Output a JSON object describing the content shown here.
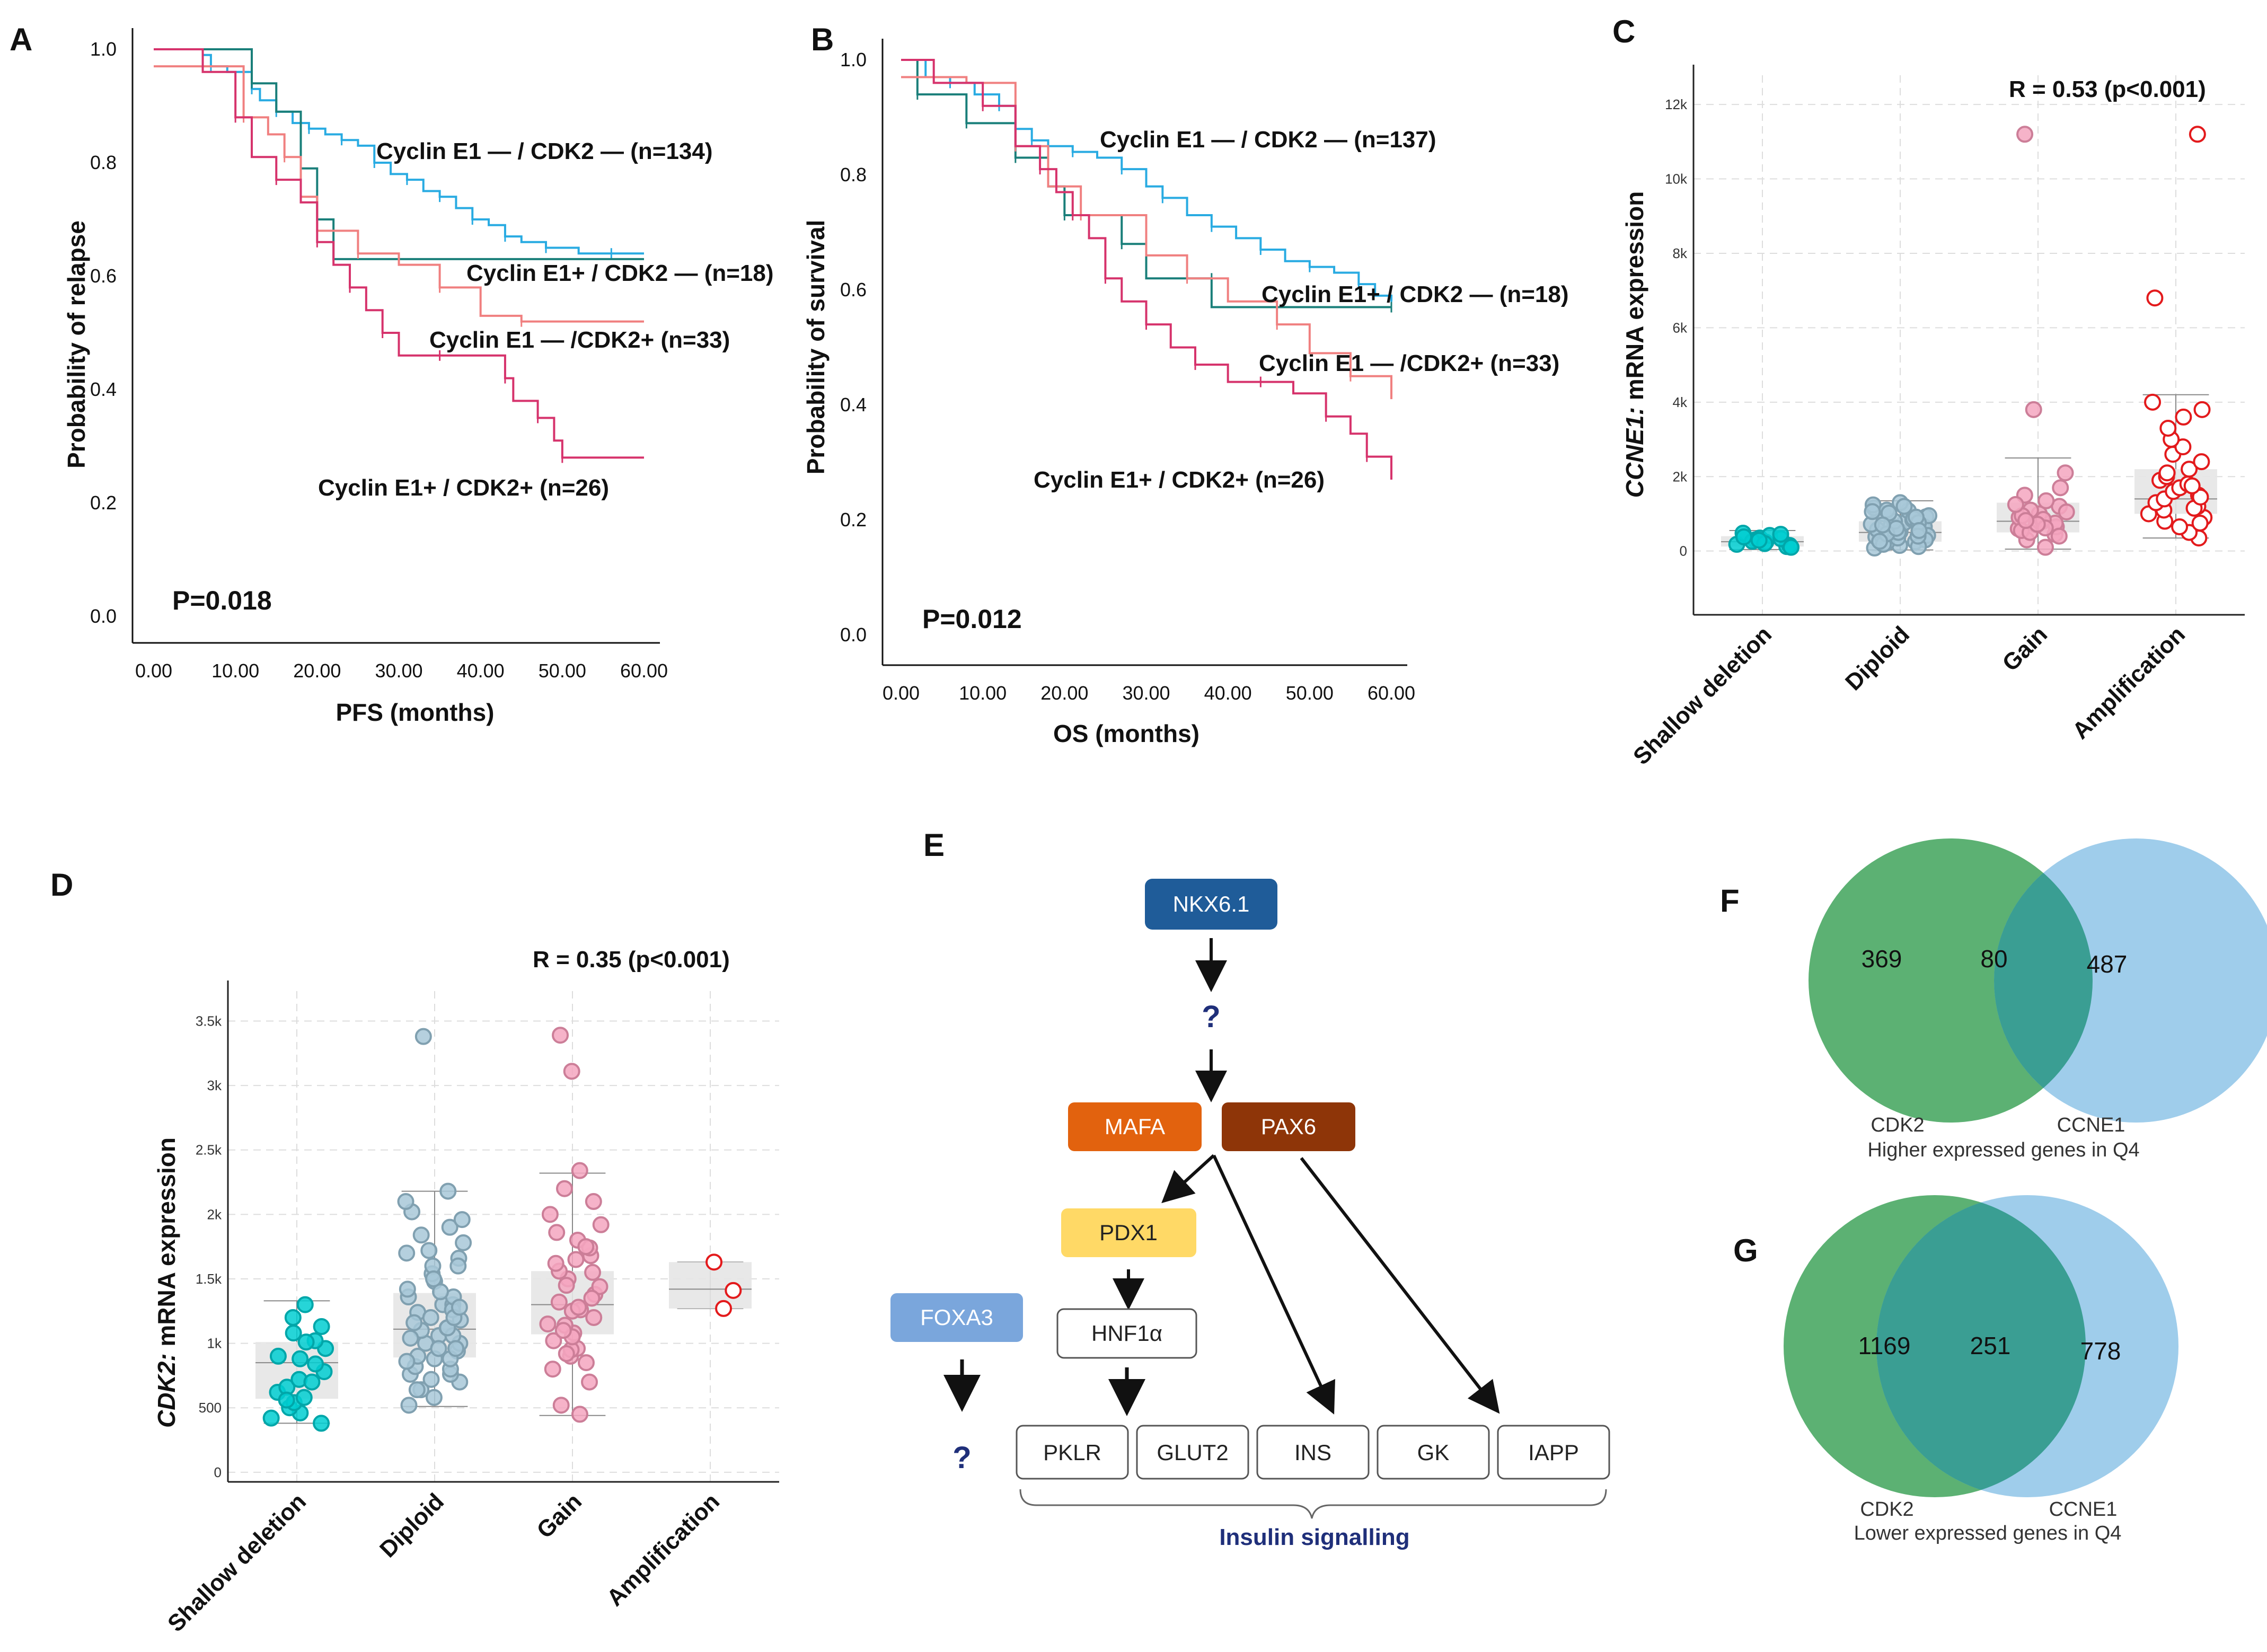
{
  "chart_data": [
    {
      "panel": "A",
      "type": "line",
      "subtype": "kaplan-meier",
      "xlabel": "PFS (months)",
      "ylabel": "Probability of relapse",
      "xlim": [
        0,
        60
      ],
      "ylim": [
        0,
        1.0
      ],
      "xticks": [
        "0.00",
        "10.00",
        "20.00",
        "30.00",
        "40.00",
        "50.00",
        "60.00"
      ],
      "yticks": [
        "0.0",
        "0.2",
        "0.4",
        "0.6",
        "0.8",
        "1.0"
      ],
      "annotation": "P=0.018",
      "series": [
        {
          "name": "Cyclin E1 — / CDK2 — (n=134)",
          "color": "#29ABE2",
          "points": [
            [
              0,
              1.0
            ],
            [
              6,
              0.99
            ],
            [
              7,
              0.97
            ],
            [
              9,
              0.96
            ],
            [
              12,
              0.93
            ],
            [
              13,
              0.91
            ],
            [
              15,
              0.89
            ],
            [
              17,
              0.87
            ],
            [
              19,
              0.86
            ],
            [
              21,
              0.85
            ],
            [
              23,
              0.84
            ],
            [
              25,
              0.83
            ],
            [
              27,
              0.8
            ],
            [
              29,
              0.78
            ],
            [
              31,
              0.77
            ],
            [
              33,
              0.75
            ],
            [
              35,
              0.74
            ],
            [
              37,
              0.72
            ],
            [
              39,
              0.7
            ],
            [
              41,
              0.69
            ],
            [
              43,
              0.67
            ],
            [
              45,
              0.66
            ],
            [
              48,
              0.65
            ],
            [
              52,
              0.64
            ],
            [
              56,
              0.64
            ],
            [
              60,
              0.64
            ]
          ]
        },
        {
          "name": "Cyclin E1+ / CDK2 — (n=18)",
          "color": "#1A7F7A",
          "points": [
            [
              0,
              1.0
            ],
            [
              12,
              1.0
            ],
            [
              12,
              0.94
            ],
            [
              15,
              0.89
            ],
            [
              18,
              0.79
            ],
            [
              20,
              0.7
            ],
            [
              22,
              0.63
            ],
            [
              60,
              0.63
            ]
          ]
        },
        {
          "name": "Cyclin E1 — /CDK2+ (n=33)",
          "color": "#F08080",
          "points": [
            [
              0,
              0.97
            ],
            [
              10,
              0.97
            ],
            [
              11,
              0.88
            ],
            [
              14,
              0.85
            ],
            [
              16,
              0.81
            ],
            [
              18,
              0.74
            ],
            [
              20,
              0.68
            ],
            [
              22,
              0.68
            ],
            [
              25,
              0.64
            ],
            [
              30,
              0.62
            ],
            [
              35,
              0.58
            ],
            [
              40,
              0.53
            ],
            [
              45,
              0.52
            ],
            [
              60,
              0.52
            ]
          ]
        },
        {
          "name": "Cyclin E1+ / CDK2+ (n=26)",
          "color": "#D6336C",
          "points": [
            [
              0,
              1.0
            ],
            [
              6,
              0.96
            ],
            [
              10,
              0.88
            ],
            [
              12,
              0.81
            ],
            [
              15,
              0.77
            ],
            [
              18,
              0.73
            ],
            [
              20,
              0.66
            ],
            [
              22,
              0.62
            ],
            [
              24,
              0.58
            ],
            [
              26,
              0.54
            ],
            [
              28,
              0.5
            ],
            [
              30,
              0.46
            ],
            [
              35,
              0.46
            ],
            [
              42,
              0.46
            ],
            [
              43,
              0.42
            ],
            [
              44,
              0.38
            ],
            [
              47,
              0.35
            ],
            [
              49,
              0.31
            ],
            [
              50,
              0.28
            ],
            [
              60,
              0.28
            ]
          ]
        }
      ]
    },
    {
      "panel": "B",
      "type": "line",
      "subtype": "kaplan-meier",
      "xlabel": "OS (months)",
      "ylabel": "Probability of survival",
      "xlim": [
        0,
        60
      ],
      "ylim": [
        0,
        1.0
      ],
      "xticks": [
        "0.00",
        "10.00",
        "20.00",
        "30.00",
        "40.00",
        "50.00",
        "60.00"
      ],
      "yticks": [
        "0.0",
        "0.2",
        "0.4",
        "0.6",
        "0.8",
        "1.0"
      ],
      "annotation": "P=0.012",
      "series": [
        {
          "name": "Cyclin E1 — / CDK2 — (n=137)",
          "color": "#29ABE2",
          "points": [
            [
              0,
              1.0
            ],
            [
              3,
              0.97
            ],
            [
              6,
              0.96
            ],
            [
              9,
              0.94
            ],
            [
              12,
              0.92
            ],
            [
              14,
              0.88
            ],
            [
              16,
              0.86
            ],
            [
              18,
              0.85
            ],
            [
              21,
              0.84
            ],
            [
              24,
              0.83
            ],
            [
              27,
              0.81
            ],
            [
              30,
              0.78
            ],
            [
              32,
              0.76
            ],
            [
              35,
              0.73
            ],
            [
              38,
              0.71
            ],
            [
              41,
              0.69
            ],
            [
              44,
              0.67
            ],
            [
              47,
              0.65
            ],
            [
              50,
              0.64
            ],
            [
              53,
              0.63
            ],
            [
              56,
              0.61
            ],
            [
              58,
              0.59
            ],
            [
              60,
              0.58
            ]
          ]
        },
        {
          "name": "Cyclin E1+ / CDK2 — (n=18)",
          "color": "#1A7F7A",
          "points": [
            [
              0,
              1.0
            ],
            [
              2,
              1.0
            ],
            [
              2,
              0.94
            ],
            [
              8,
              0.94
            ],
            [
              8,
              0.89
            ],
            [
              14,
              0.89
            ],
            [
              14,
              0.83
            ],
            [
              18,
              0.78
            ],
            [
              20,
              0.73
            ],
            [
              22,
              0.73
            ],
            [
              27,
              0.68
            ],
            [
              30,
              0.62
            ],
            [
              38,
              0.62
            ],
            [
              38,
              0.57
            ],
            [
              60,
              0.57
            ]
          ]
        },
        {
          "name": "Cyclin E1 — /CDK2+ (n=33)",
          "color": "#F08080",
          "points": [
            [
              0,
              0.97
            ],
            [
              8,
              0.96
            ],
            [
              14,
              0.85
            ],
            [
              18,
              0.78
            ],
            [
              22,
              0.73
            ],
            [
              30,
              0.66
            ],
            [
              35,
              0.62
            ],
            [
              40,
              0.58
            ],
            [
              46,
              0.54
            ],
            [
              50,
              0.49
            ],
            [
              55,
              0.45
            ],
            [
              60,
              0.41
            ]
          ]
        },
        {
          "name": "Cyclin E1+ / CDK2+ (n=26)",
          "color": "#D6336C",
          "points": [
            [
              0,
              1.0
            ],
            [
              4,
              0.96
            ],
            [
              10,
              0.92
            ],
            [
              14,
              0.85
            ],
            [
              17,
              0.81
            ],
            [
              19,
              0.77
            ],
            [
              21,
              0.73
            ],
            [
              23,
              0.69
            ],
            [
              25,
              0.62
            ],
            [
              27,
              0.58
            ],
            [
              30,
              0.54
            ],
            [
              33,
              0.5
            ],
            [
              36,
              0.47
            ],
            [
              40,
              0.44
            ],
            [
              44,
              0.44
            ],
            [
              48,
              0.42
            ],
            [
              52,
              0.38
            ],
            [
              55,
              0.35
            ],
            [
              57,
              0.31
            ],
            [
              60,
              0.27
            ]
          ]
        }
      ]
    },
    {
      "panel": "C",
      "type": "scatter",
      "subtype": "box-jitter",
      "ylabel_italic": "CCNE1:",
      "ylabel": " mRNA expression",
      "annotation": "R = 0.53 (p<0.001)",
      "categories": [
        "Shallow deletion",
        "Diploid",
        "Gain",
        "Amplification"
      ],
      "yticks": [
        "0",
        "2k",
        "4k",
        "6k",
        "8k",
        "10k",
        "12k"
      ],
      "ylim": [
        -1500,
        12500
      ],
      "boxes": [
        {
          "q1": 120,
          "median": 250,
          "q3": 400,
          "whisker_low": 40,
          "whisker_high": 550
        },
        {
          "q1": 250,
          "median": 500,
          "q3": 800,
          "whisker_low": 30,
          "whisker_high": 1350
        },
        {
          "q1": 500,
          "median": 800,
          "q3": 1300,
          "whisker_low": 50,
          "whisker_high": 2500
        },
        {
          "q1": 1000,
          "median": 1400,
          "q3": 2200,
          "whisker_low": 350,
          "whisker_high": 4200
        }
      ],
      "colors": [
        "#00CED1",
        "#A8C8D8",
        "#F4A6C0",
        "#E31A1C"
      ],
      "points": [
        [
          120,
          180,
          240,
          300,
          350,
          420,
          480,
          260,
          200,
          150,
          330,
          380,
          100,
          450,
          290
        ],
        [
          80,
          150,
          220,
          300,
          380,
          450,
          520,
          600,
          680,
          760,
          840,
          920,
          1000,
          1080,
          1160,
          1240,
          1300,
          350,
          500,
          650,
          800,
          950,
          1100,
          250,
          420,
          570,
          720,
          870,
          1020,
          180,
          300,
          460,
          610,
          760,
          910,
          1060,
          1200,
          120,
          260,
          400,
          550,
          700
        ],
        [
          100,
          300,
          450,
          600,
          700,
          800,
          900,
          1000,
          1100,
          1200,
          1350,
          1500,
          1700,
          2100,
          3800,
          11200,
          550,
          650,
          750,
          850,
          950,
          1050,
          1250,
          400,
          500,
          620,
          720,
          820
        ],
        [
          350,
          500,
          650,
          800,
          900,
          1000,
          1100,
          1200,
          1300,
          1400,
          1500,
          1600,
          1700,
          1800,
          1900,
          2000,
          2200,
          2400,
          2600,
          2800,
          3000,
          3300,
          3600,
          3800,
          4000,
          6800,
          11200,
          750,
          1150,
          1450,
          1750,
          2100
        ]
      ]
    },
    {
      "panel": "D",
      "type": "scatter",
      "subtype": "box-jitter",
      "ylabel_italic": "CDK2:",
      "ylabel": " mRNA expression",
      "annotation": "R = 0.35 (p<0.001)",
      "categories": [
        "Shallow deletion",
        "Diploid",
        "Gain",
        "Amplification"
      ],
      "yticks": [
        "0",
        "500",
        "1k",
        "1.5k",
        "2k",
        "2.5k",
        "3k",
        "3.5k"
      ],
      "ylim": [
        -50,
        3650
      ],
      "boxes": [
        {
          "q1": 570,
          "median": 850,
          "q3": 1010,
          "whisker_low": 380,
          "whisker_high": 1330
        },
        {
          "q1": 890,
          "median": 1110,
          "q3": 1390,
          "whisker_low": 510,
          "whisker_high": 2180
        },
        {
          "q1": 1070,
          "median": 1300,
          "q3": 1560,
          "whisker_low": 440,
          "whisker_high": 2320
        },
        {
          "q1": 1270,
          "median": 1420,
          "q3": 1630,
          "whisker_low": 1270,
          "whisker_high": 1630
        }
      ],
      "colors": [
        "#00CED1",
        "#A8C8D8",
        "#F4A6C0",
        "#E31A1C"
      ],
      "points": [
        [
          380,
          420,
          460,
          500,
          540,
          580,
          620,
          660,
          720,
          780,
          840,
          900,
          960,
          1020,
          1080,
          1130,
          1200,
          1300,
          560,
          700,
          880,
          1010
        ],
        [
          520,
          580,
          640,
          700,
          760,
          820,
          880,
          940,
          1000,
          1060,
          1120,
          1180,
          1240,
          1300,
          1360,
          1420,
          1480,
          1540,
          1600,
          1660,
          1720,
          1780,
          1840,
          1900,
          1960,
          2020,
          2100,
          2180,
          3380,
          900,
          1000,
          1100,
          1200,
          1300,
          760,
          860,
          960,
          1060,
          1160,
          1260,
          1360,
          640,
          720,
          800,
          880,
          960,
          1040,
          1120,
          1200,
          1280,
          1400,
          1500,
          1600,
          1700
        ],
        [
          450,
          520,
          700,
          800,
          900,
          960,
          1020,
          1080,
          1140,
          1200,
          1260,
          1320,
          1380,
          1440,
          1500,
          1560,
          1620,
          1680,
          1740,
          1800,
          1860,
          1920,
          2000,
          2100,
          2200,
          2340,
          3110,
          3390,
          850,
          950,
          1050,
          1150,
          1250,
          1350,
          1450,
          1550,
          1650,
          1750,
          920,
          1100,
          1280
        ],
        [
          1410,
          1270,
          1630
        ]
      ]
    },
    {
      "panel": "F",
      "type": "venn",
      "left_label": "CDK2",
      "right_label": "CCNE1",
      "caption": "Higher expressed genes in Q4",
      "left_only": 369,
      "overlap": 80,
      "right_only": 487
    },
    {
      "panel": "G",
      "type": "venn",
      "left_label": "CDK2",
      "right_label": "CCNE1",
      "caption": "Lower expressed genes in Q4",
      "left_only": 1169,
      "overlap": 251,
      "right_only": 778
    }
  ],
  "panels": {
    "A": "A",
    "B": "B",
    "C": "C",
    "D": "D",
    "E": "E",
    "F": "F",
    "G": "G"
  },
  "diagram_e": {
    "nodes": {
      "nkx": "NKX6.1",
      "q1": "?",
      "mafa": "MAFA",
      "pax6": "PAX6",
      "pdx1": "PDX1",
      "hnf": "HNF1α",
      "foxa3": "FOXA3",
      "q2": "?",
      "pklr": "PKLR",
      "glut2": "GLUT2",
      "ins": "INS",
      "gk": "GK",
      "iapp": "IAPP"
    },
    "bracket_label": "Insulin signalling",
    "colors": {
      "nkx": "#1F5C99",
      "mafa": "#E2620E",
      "pax6": "#8E3508",
      "pdx1": "#FFD966",
      "foxa3": "#7AA6DC",
      "question": "#1F2F7A"
    }
  },
  "venn_colors": {
    "left": "#3FA35B",
    "right": "#8EC4E8",
    "overlap": "#3A9E93"
  }
}
